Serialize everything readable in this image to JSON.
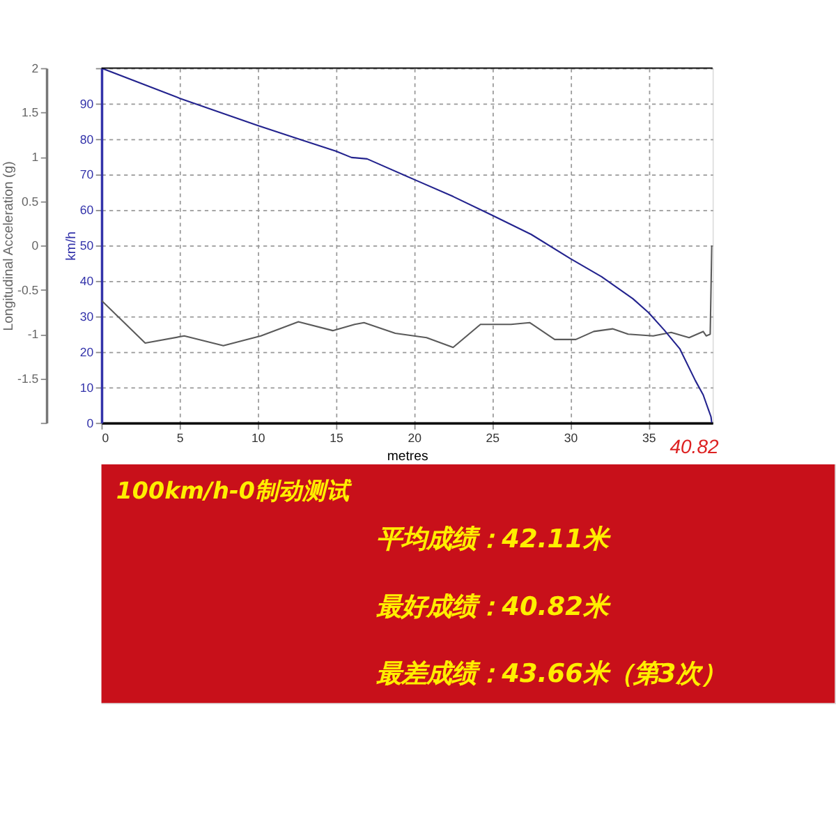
{
  "chart_data": {
    "type": "line",
    "title": "100km/h-0制动测试",
    "xlabel": "metres",
    "ylabel": "Longitudinal Acceleration (g)",
    "y2label": "km/h",
    "xlim": [
      0,
      39.1
    ],
    "xticks": [
      0,
      5,
      10,
      15,
      20,
      25,
      30,
      35
    ],
    "ylim": [
      -2,
      2
    ],
    "yticks": [
      {
        "value": -2,
        "label": null
      },
      -1.5,
      -1,
      -0.5,
      0,
      0.5,
      1,
      1.5,
      2
    ],
    "y2lim": [
      0,
      100
    ],
    "y2ticks": [
      0,
      10,
      20,
      30,
      40,
      50,
      60,
      70,
      80,
      90,
      {
        "value": 100,
        "label": null
      }
    ],
    "grid": true,
    "marker": "none",
    "line_style": "solid",
    "series": [
      {
        "color": "#5a5a5a",
        "x": [
          0,
          2.8,
          5.3,
          7.8,
          10.2,
          12.6,
          14.8,
          16.2,
          16.8,
          18.8,
          20.8,
          22.5,
          24.25,
          26.2,
          27.4,
          29,
          30.35,
          31.5,
          32.7,
          33.7,
          35.3,
          36.45,
          37.6,
          38.5,
          38.7,
          38.95,
          39.05
        ],
        "values": [
          -0.62,
          -1.1,
          -1.02,
          -1.13,
          -1.02,
          -0.86,
          -0.96,
          -0.89,
          -0.87,
          -0.99,
          -1.04,
          -1.15,
          -0.89,
          -0.89,
          -0.87,
          -1.06,
          -1.06,
          -0.97,
          -0.94,
          -1.0,
          -1.02,
          -0.98,
          -1.04,
          -0.97,
          -1.02,
          -1.0,
          0.0
        ]
      },
      {
        "color": "#23238e",
        "axis": "y2",
        "x": [
          0,
          5,
          10,
          12.5,
          15,
          16,
          17,
          20,
          22.5,
          25,
          27.5,
          30,
          32,
          34,
          35,
          36,
          37,
          38,
          38.5,
          39,
          39.05
        ],
        "values": [
          100,
          91.5,
          83.8,
          80.2,
          76.6,
          74.8,
          74.4,
          68.6,
          63.8,
          58.5,
          53.1,
          46.3,
          41.2,
          35,
          31.1,
          26.2,
          20.9,
          11.9,
          7.9,
          1.7,
          0
        ]
      }
    ],
    "annotations": [
      "40.82",
      "平均成绩：42.11米",
      "最好成绩：40.82米",
      "最差成绩：43.66米（第3次）"
    ]
  }
}
